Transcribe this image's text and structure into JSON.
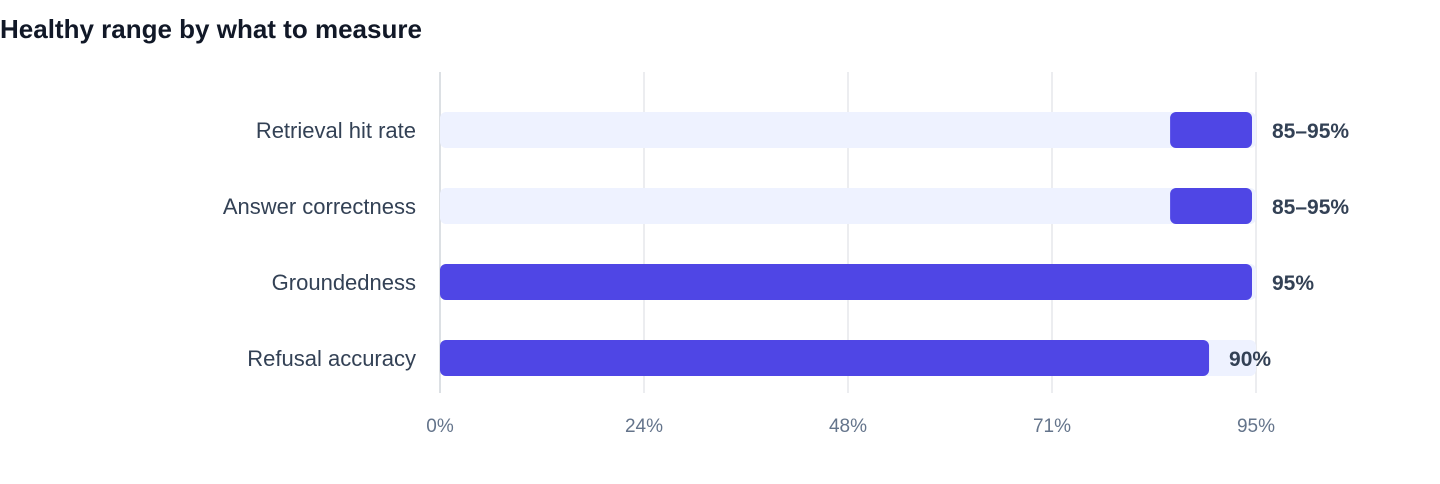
{
  "chart_data": {
    "type": "bar",
    "orientation": "horizontal",
    "title": "Healthy range by what to measure",
    "categories": [
      "Retrieval hit rate",
      "Answer correctness",
      "Groundedness",
      "Refusal accuracy"
    ],
    "ranges": [
      [
        85,
        95
      ],
      [
        85,
        95
      ],
      [
        0,
        95
      ],
      [
        0,
        90
      ]
    ],
    "value_labels": [
      "85–95%",
      "85–95%",
      "95%",
      "90%"
    ],
    "xlim": [
      0,
      95
    ],
    "x_ticks": [
      "0%",
      "24%",
      "48%",
      "71%",
      "95%"
    ],
    "grid": "vertical",
    "legend": "none",
    "colors": {
      "bar": "#4f46e5",
      "track": "#eef2ff",
      "grid": "#e5e7eb",
      "axis": "#d1d5db"
    }
  }
}
